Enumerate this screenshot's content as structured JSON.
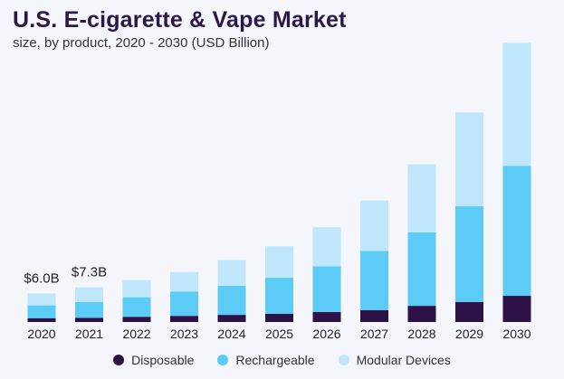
{
  "chart_data": {
    "type": "bar",
    "stacked": true,
    "title": "U.S. E-cigarette & Vape Market",
    "subtitle": "size, by product, 2020 - 2030 (USD Billion)",
    "categories": [
      "2020",
      "2021",
      "2022",
      "2023",
      "2024",
      "2025",
      "2026",
      "2027",
      "2028",
      "2029",
      "2030"
    ],
    "series": [
      {
        "name": "Disposable",
        "color": "#2d1248",
        "values": [
          0.8,
          0.9,
          1.1,
          1.3,
          1.5,
          1.7,
          2.1,
          2.5,
          3.4,
          4.2,
          5.5
        ]
      },
      {
        "name": "Rechargeable",
        "color": "#5ccbf5",
        "values": [
          2.7,
          3.3,
          4.1,
          5.1,
          6.1,
          7.6,
          9.6,
          12.4,
          15.4,
          20.1,
          27.3
        ]
      },
      {
        "name": "Modular Devices",
        "color": "#bfe6fa",
        "values": [
          2.5,
          3.1,
          3.6,
          4.1,
          5.4,
          6.6,
          8.2,
          10.6,
          14.3,
          19.7,
          25.8
        ]
      }
    ],
    "annotations": [
      {
        "category": "2020",
        "text": "$6.0B"
      },
      {
        "category": "2021",
        "text": "$7.3B"
      }
    ],
    "ylim": [
      0,
      60
    ],
    "xlabel": "",
    "ylabel": "",
    "grid": false,
    "legend": "bottom"
  }
}
